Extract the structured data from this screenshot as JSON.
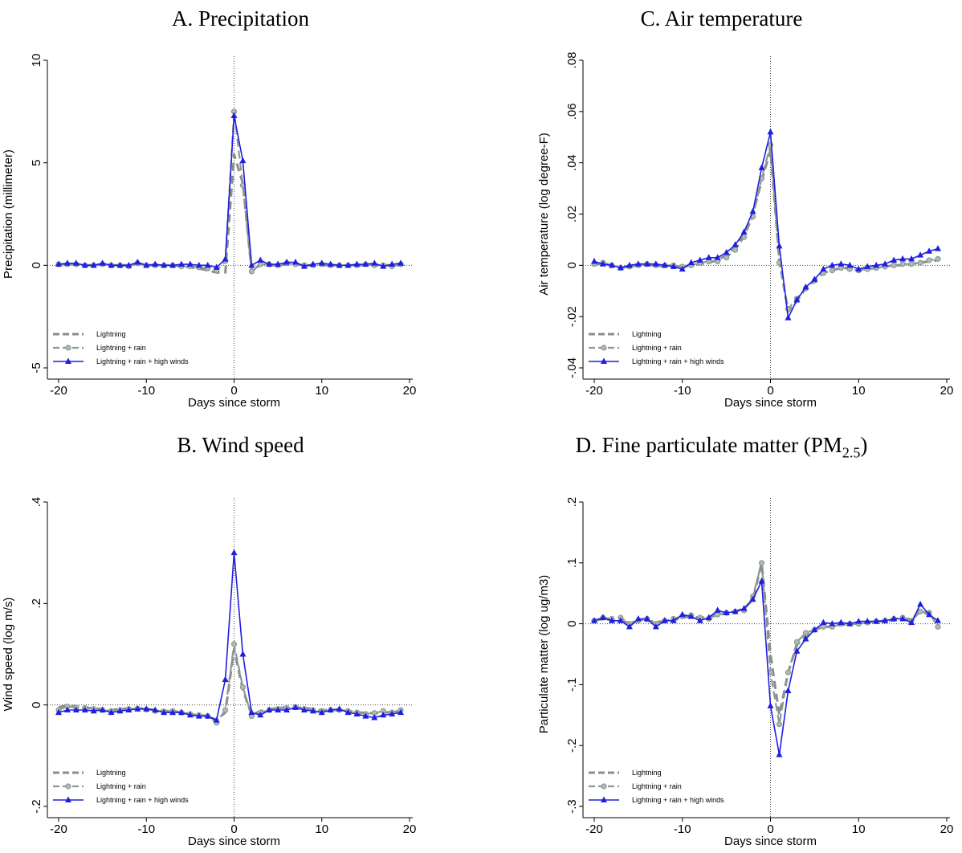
{
  "colors": {
    "lightning": "#8c8c8c",
    "rain": "#8a9a93",
    "winds": "#1f1fe0",
    "axis": "#000000"
  },
  "legend": {
    "placement": "bottom-left",
    "items": [
      "Lightning",
      "Lightning + rain",
      "Lightning + rain + high winds"
    ]
  },
  "panels": [
    {
      "title": "A. Precipitation",
      "title_sub": ""
    },
    {
      "title": "C. Air temperature",
      "title_sub": ""
    },
    {
      "title": "B. Wind speed",
      "title_sub": ""
    },
    {
      "title": "D. Fine particulate matter (PM",
      "title_sub": "2.5",
      "title_suffix": ")"
    }
  ],
  "chart_data": [
    {
      "type": "line",
      "title": "A. Precipitation",
      "xlabel": "Days since storm",
      "ylabel": "Precipitation (millimeter)",
      "xlim": [
        -20,
        20
      ],
      "ylim": [
        -5,
        10
      ],
      "xticks": [
        -20,
        -10,
        0,
        10,
        20
      ],
      "xtick_labels": [
        "-20",
        "-10",
        "0",
        "10",
        "20"
      ],
      "yticks": [
        -5,
        0,
        5,
        10
      ],
      "ytick_labels": [
        "-5",
        "0",
        "5",
        "10"
      ],
      "reference_lines": {
        "x": 0,
        "y": 0
      },
      "x": [
        -20,
        -19,
        -18,
        -17,
        -16,
        -15,
        -14,
        -13,
        -12,
        -11,
        -10,
        -9,
        -8,
        -7,
        -6,
        -5,
        -4,
        -3,
        -2,
        -1,
        0,
        1,
        2,
        3,
        4,
        5,
        6,
        7,
        8,
        9,
        10,
        11,
        12,
        13,
        14,
        15,
        16,
        17,
        18,
        19
      ],
      "series": [
        {
          "name": "Lightning",
          "values": [
            0.05,
            0.05,
            0.05,
            0,
            0,
            0.05,
            0,
            0,
            0,
            0.1,
            0,
            0,
            0,
            0,
            -0.05,
            -0.1,
            -0.15,
            -0.25,
            -0.35,
            -0.35,
            5.4,
            4.0,
            -0.3,
            0.05,
            0,
            0,
            0.05,
            0.05,
            0,
            0,
            0,
            0,
            0,
            0,
            0,
            0,
            0,
            0,
            0,
            0
          ]
        },
        {
          "name": "Lightning + rain",
          "values": [
            0.05,
            0.05,
            0.05,
            0,
            0,
            0.05,
            0,
            0,
            -0.05,
            0.1,
            0,
            0,
            0,
            0,
            -0.05,
            -0.05,
            -0.1,
            -0.15,
            -0.25,
            0.2,
            7.5,
            3.9,
            -0.3,
            0.05,
            0.05,
            0,
            0.1,
            0.05,
            0,
            0,
            0.05,
            0,
            0,
            0,
            0,
            0.05,
            0,
            0,
            -0.05,
            0.05
          ]
        },
        {
          "name": "Lightning + rain + high winds",
          "values": [
            0.05,
            0.1,
            0.1,
            0,
            0,
            0.1,
            0,
            0,
            0,
            0.15,
            0,
            0.05,
            0,
            0,
            0.05,
            0.05,
            0,
            0,
            -0.1,
            0.3,
            7.3,
            5.1,
            0,
            0.25,
            0.05,
            0.05,
            0.15,
            0.15,
            -0.05,
            0.05,
            0.1,
            0.05,
            0,
            0,
            0.05,
            0.05,
            0.1,
            -0.05,
            0.05,
            0.1
          ]
        }
      ]
    },
    {
      "type": "line",
      "title": "C. Air temperature",
      "xlabel": "Days since storm",
      "ylabel": "Air temperature (log degree-F)",
      "xlim": [
        -20,
        20
      ],
      "ylim": [
        -0.04,
        0.08
      ],
      "xticks": [
        -20,
        -10,
        0,
        10,
        20
      ],
      "xtick_labels": [
        "-20",
        "-10",
        "0",
        "10",
        "20"
      ],
      "yticks": [
        -0.04,
        -0.02,
        0,
        0.02,
        0.04,
        0.06,
        0.08
      ],
      "ytick_labels": [
        "-.04",
        "-.02",
        "0",
        ".02",
        ".04",
        ".06",
        ".08"
      ],
      "reference_lines": {
        "x": 0,
        "y": 0
      },
      "x": [
        -20,
        -19,
        -18,
        -17,
        -16,
        -15,
        -14,
        -13,
        -12,
        -11,
        -10,
        -9,
        -8,
        -7,
        -6,
        -5,
        -4,
        -3,
        -2,
        -1,
        0,
        1,
        2,
        3,
        4,
        5,
        6,
        7,
        8,
        9,
        10,
        11,
        12,
        13,
        14,
        15,
        16,
        17,
        18,
        19
      ],
      "series": [
        {
          "name": "Lightning",
          "values": [
            0.0005,
            0.0005,
            0,
            -0.001,
            -0.0005,
            0,
            0,
            0,
            -0.0005,
            -0.0005,
            -0.0005,
            0,
            0.0005,
            0.001,
            0.002,
            0.004,
            0.007,
            0.012,
            0.02,
            0.033,
            0.045,
            0.002,
            -0.018,
            -0.014,
            -0.009,
            -0.006,
            -0.003,
            -0.002,
            -0.001,
            -0.001,
            -0.0015,
            -0.0015,
            -0.001,
            -0.0005,
            0,
            0,
            0.0005,
            0.001,
            0.0015,
            0.002
          ]
        },
        {
          "name": "Lightning + rain",
          "values": [
            0.0005,
            0.001,
            0,
            -0.001,
            -0.0005,
            0,
            0.0005,
            0,
            0,
            0,
            -0.0005,
            0,
            0.001,
            0.0015,
            0.0015,
            0.003,
            0.006,
            0.011,
            0.019,
            0.034,
            0.047,
            0.001,
            -0.017,
            -0.013,
            -0.009,
            -0.006,
            -0.003,
            -0.002,
            -0.001,
            -0.0015,
            -0.002,
            -0.0015,
            -0.001,
            -0.0005,
            0,
            0.0005,
            0.0005,
            0.001,
            0.002,
            0.0025
          ]
        },
        {
          "name": "Lightning + rain + high winds",
          "values": [
            0.0015,
            0.0005,
            0,
            -0.001,
            0,
            0.0005,
            0.0005,
            0.0005,
            0,
            -0.0005,
            -0.0015,
            0.001,
            0.002,
            0.003,
            0.003,
            0.005,
            0.008,
            0.013,
            0.021,
            0.038,
            0.052,
            0.0075,
            -0.0205,
            -0.0135,
            -0.0085,
            -0.0055,
            -0.0015,
            0,
            0.0005,
            0,
            -0.0015,
            -0.0005,
            0,
            0.0005,
            0.002,
            0.0025,
            0.0025,
            0.004,
            0.0055,
            0.0065
          ]
        }
      ]
    },
    {
      "type": "line",
      "title": "B. Wind speed",
      "xlabel": "Days since storm",
      "ylabel": "Wind speed (log m/s)",
      "xlim": [
        -20,
        20
      ],
      "ylim": [
        -0.2,
        0.4
      ],
      "xticks": [
        -20,
        -10,
        0,
        10,
        20
      ],
      "xtick_labels": [
        "-20",
        "-10",
        "0",
        "10",
        "20"
      ],
      "yticks": [
        -0.2,
        0,
        0.2,
        0.4
      ],
      "ytick_labels": [
        "-.2",
        "0",
        ".2",
        ".4"
      ],
      "reference_lines": {
        "x": 0,
        "y": 0
      },
      "x": [
        -20,
        -19,
        -18,
        -17,
        -16,
        -15,
        -14,
        -13,
        -12,
        -11,
        -10,
        -9,
        -8,
        -7,
        -6,
        -5,
        -4,
        -3,
        -2,
        -1,
        0,
        1,
        2,
        3,
        4,
        5,
        6,
        7,
        8,
        9,
        10,
        11,
        12,
        13,
        14,
        15,
        16,
        17,
        18,
        19
      ],
      "series": [
        {
          "name": "Lightning",
          "values": [
            -0.005,
            0,
            -0.003,
            -0.005,
            -0.007,
            -0.008,
            -0.01,
            -0.008,
            -0.007,
            -0.006,
            -0.008,
            -0.01,
            -0.012,
            -0.012,
            -0.015,
            -0.018,
            -0.02,
            -0.022,
            -0.03,
            -0.015,
            0.11,
            0.03,
            -0.02,
            -0.012,
            -0.008,
            -0.006,
            -0.005,
            -0.005,
            -0.006,
            -0.008,
            -0.01,
            -0.01,
            -0.01,
            -0.012,
            -0.014,
            -0.016,
            -0.016,
            -0.015,
            -0.014,
            -0.012
          ]
        },
        {
          "name": "Lightning + rain",
          "values": [
            -0.01,
            -0.003,
            -0.005,
            -0.006,
            -0.008,
            -0.01,
            -0.012,
            -0.01,
            -0.008,
            -0.007,
            -0.009,
            -0.012,
            -0.013,
            -0.012,
            -0.015,
            -0.018,
            -0.02,
            -0.022,
            -0.035,
            -0.01,
            0.12,
            0.035,
            -0.022,
            -0.015,
            -0.01,
            -0.008,
            -0.006,
            -0.004,
            -0.008,
            -0.01,
            -0.012,
            -0.01,
            -0.01,
            -0.012,
            -0.015,
            -0.018,
            -0.016,
            -0.012,
            -0.015,
            -0.01
          ]
        },
        {
          "name": "Lightning + rain + high winds",
          "values": [
            -0.015,
            -0.01,
            -0.01,
            -0.01,
            -0.012,
            -0.01,
            -0.015,
            -0.012,
            -0.01,
            -0.008,
            -0.008,
            -0.01,
            -0.015,
            -0.015,
            -0.015,
            -0.02,
            -0.022,
            -0.022,
            -0.03,
            0.05,
            0.3,
            0.1,
            -0.015,
            -0.02,
            -0.01,
            -0.01,
            -0.01,
            -0.005,
            -0.01,
            -0.012,
            -0.015,
            -0.01,
            -0.008,
            -0.015,
            -0.018,
            -0.022,
            -0.025,
            -0.02,
            -0.018,
            -0.015
          ]
        }
      ]
    },
    {
      "type": "line",
      "title": "D. Fine particulate matter (PM2.5)",
      "xlabel": "Days since storm",
      "ylabel": "Particulate matter (log ug/m3)",
      "xlim": [
        -20,
        20
      ],
      "ylim": [
        -0.3,
        0.2
      ],
      "xticks": [
        -20,
        -10,
        0,
        10,
        20
      ],
      "xtick_labels": [
        "-20",
        "-10",
        "0",
        "10",
        "20"
      ],
      "yticks": [
        -0.3,
        -0.2,
        -0.1,
        0,
        0.1,
        0.2
      ],
      "ytick_labels": [
        "-.3",
        "-.2",
        "-.1",
        "0",
        ".1",
        ".2"
      ],
      "reference_lines": {
        "x": 0,
        "y": 0
      },
      "x": [
        -20,
        -19,
        -18,
        -17,
        -16,
        -15,
        -14,
        -13,
        -12,
        -11,
        -10,
        -9,
        -8,
        -7,
        -6,
        -5,
        -4,
        -3,
        -2,
        -1,
        0,
        1,
        2,
        3,
        4,
        5,
        6,
        7,
        8,
        9,
        10,
        11,
        12,
        13,
        14,
        15,
        16,
        17,
        18,
        19
      ],
      "series": [
        {
          "name": "Lightning",
          "values": [
            0.005,
            0.008,
            0.006,
            0.004,
            0.002,
            0.004,
            0.005,
            0.003,
            0.004,
            0.006,
            0.01,
            0.012,
            0.01,
            0.012,
            0.015,
            0.017,
            0.02,
            0.025,
            0.04,
            0.1,
            -0.05,
            -0.15,
            -0.08,
            -0.035,
            -0.02,
            -0.01,
            -0.005,
            -0.005,
            -0.002,
            0,
            0,
            0.002,
            0.004,
            0.004,
            0.006,
            0.008,
            0.008,
            0.02,
            0.015,
            0.005
          ]
        },
        {
          "name": "Lightning + rain",
          "values": [
            0.005,
            0.01,
            0.008,
            0.01,
            0,
            0.005,
            0.008,
            0,
            0.005,
            0.008,
            0.012,
            0.014,
            0.01,
            0.008,
            0.015,
            0.018,
            0.02,
            0.022,
            0.045,
            0.1,
            -0.08,
            -0.165,
            -0.08,
            -0.03,
            -0.015,
            -0.01,
            -0.005,
            -0.005,
            0,
            0,
            0,
            0.002,
            0.004,
            0.005,
            0.008,
            0.01,
            0.005,
            0.02,
            0.018,
            -0.005
          ]
        },
        {
          "name": "Lightning + rain + high winds",
          "values": [
            0.005,
            0.01,
            0.005,
            0.005,
            -0.005,
            0.008,
            0.008,
            -0.005,
            0.005,
            0.005,
            0.015,
            0.012,
            0.005,
            0.01,
            0.022,
            0.018,
            0.02,
            0.025,
            0.04,
            0.07,
            -0.135,
            -0.215,
            -0.11,
            -0.045,
            -0.025,
            -0.01,
            0.002,
            0,
            0.002,
            0,
            0.004,
            0.004,
            0.004,
            0.005,
            0.008,
            0.008,
            0.002,
            0.032,
            0.015,
            0.005
          ]
        }
      ]
    }
  ]
}
